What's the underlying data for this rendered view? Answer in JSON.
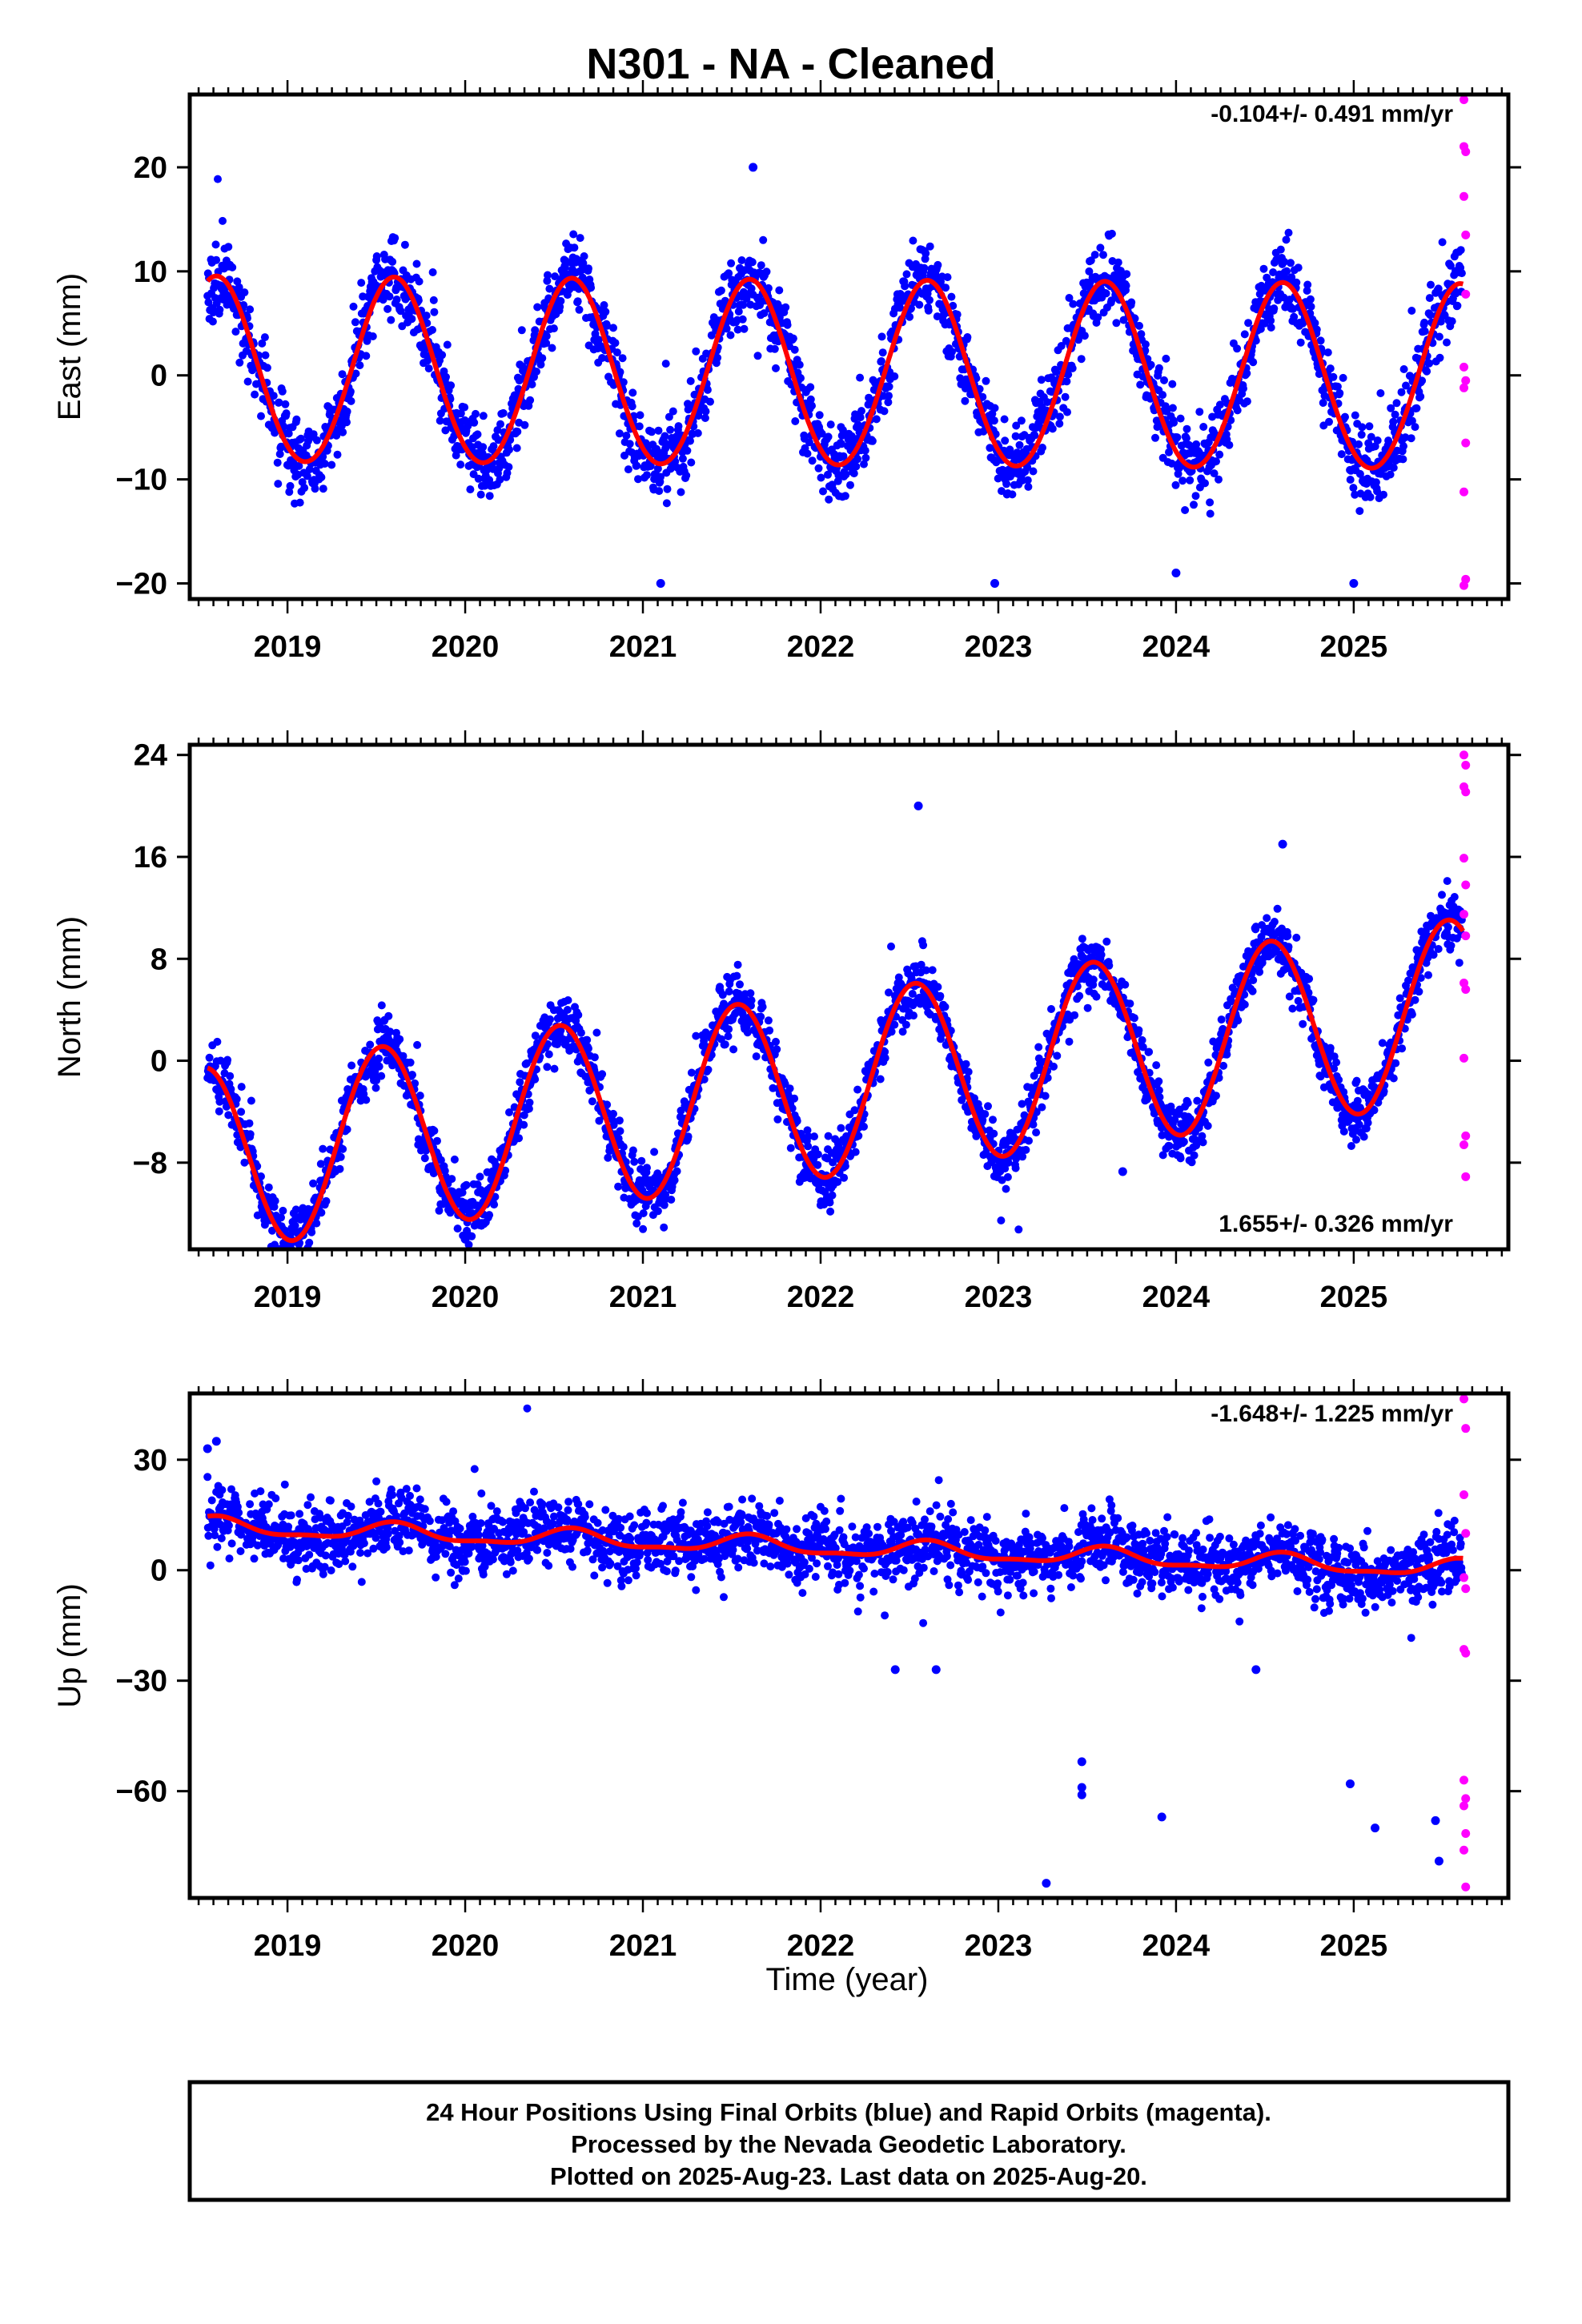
{
  "title": "N301  - NA - Cleaned",
  "colors": {
    "final": "#0000ff",
    "rapid": "#ff00ff",
    "model": "#ff0000",
    "frame": "#000000"
  },
  "xlabel": "Time (year)",
  "footer": [
    "24 Hour Positions Using Final Orbits (blue) and Rapid Orbits (magenta).",
    "Processed by the Nevada Geodetic Laboratory.",
    "Plotted on 2025-Aug-23. Last data on 2025-Aug-20."
  ],
  "chart_data": [
    {
      "type": "scatter",
      "component": "east",
      "ylabel": "East (mm)",
      "rate": "-0.104+/- 0.491 mm/yr",
      "xlim": [
        2018.45,
        2025.87
      ],
      "ylim": [
        -21.5,
        27
      ],
      "yticks": [
        -20,
        -10,
        0,
        10,
        20
      ],
      "xticks": [
        2019,
        2020,
        2021,
        2022,
        2023,
        2024,
        2025
      ],
      "model": {
        "offset": 0.0,
        "rate": -0.104,
        "amp": 8.9,
        "peak": 0.6,
        "amp2": 0.3,
        "peak2": 0.6
      },
      "noise": {
        "scatter": 2.1,
        "spread": 0.12,
        "seed": 11,
        "outliers": [
          [
            2021.1,
            -20
          ],
          [
            2021.62,
            20
          ],
          [
            2022.98,
            -20
          ],
          [
            2024.0,
            -19
          ],
          [
            2025.0,
            -20
          ]
        ]
      },
      "rapid": [
        [
          2025.62,
          26.5
        ],
        [
          2025.62,
          22
        ],
        [
          2025.63,
          21.5
        ],
        [
          2025.62,
          17.2
        ],
        [
          2025.63,
          13.5
        ],
        [
          2025.63,
          7.8
        ],
        [
          2025.62,
          0.8
        ],
        [
          2025.63,
          -0.5
        ],
        [
          2025.62,
          -1.2
        ],
        [
          2025.63,
          -6.5
        ],
        [
          2025.62,
          -11.2
        ],
        [
          2025.63,
          -19.6
        ],
        [
          2025.62,
          -20.2
        ]
      ]
    },
    {
      "type": "scatter",
      "component": "north",
      "ylabel": "North (mm)",
      "rate": "1.655+/- 0.326 mm/yr",
      "xlim": [
        2018.45,
        2025.87
      ],
      "ylim": [
        -14.8,
        24.8
      ],
      "yticks": [
        -8,
        0,
        8,
        16,
        24
      ],
      "xticks": [
        2019,
        2020,
        2021,
        2022,
        2023,
        2024,
        2025
      ],
      "model": {
        "offset": -2.0,
        "rate": 1.655,
        "amp": 7.2,
        "peak": 0.53,
        "amp2": 0.0,
        "peak2": 0.0
      },
      "noise": {
        "scatter": 1.3,
        "spread": 0.1,
        "seed": 23,
        "outliers": [
          [
            2020.0,
            -14
          ],
          [
            2022.55,
            20
          ],
          [
            2023.7,
            -8.7
          ],
          [
            2024.6,
            17
          ],
          [
            2021.05,
            -9.5
          ]
        ]
      },
      "rapid": [
        [
          2025.62,
          24
        ],
        [
          2025.63,
          23.2
        ],
        [
          2025.62,
          21.5
        ],
        [
          2025.63,
          21.1
        ],
        [
          2025.62,
          15.9
        ],
        [
          2025.63,
          13.8
        ],
        [
          2025.62,
          11.5
        ],
        [
          2025.63,
          9.8
        ],
        [
          2025.62,
          6.1
        ],
        [
          2025.63,
          5.6
        ],
        [
          2025.62,
          0.2
        ],
        [
          2025.63,
          -5.9
        ],
        [
          2025.62,
          -6.6
        ],
        [
          2025.63,
          -9.1
        ]
      ]
    },
    {
      "type": "scatter",
      "component": "up",
      "ylabel": "Up (mm)",
      "rate": "-1.648+/- 1.225 mm/yr",
      "xlim": [
        2018.45,
        2025.87
      ],
      "ylim": [
        -89,
        48
      ],
      "yticks": [
        -60,
        -30,
        0,
        30
      ],
      "xticks": [
        2019,
        2020,
        2021,
        2022,
        2023,
        2024,
        2025
      ],
      "model": {
        "offset": 6.2,
        "rate": -1.648,
        "amp": 2.2,
        "peak": 0.6,
        "amp2": 0.8,
        "peak2": 0.1
      },
      "noise": {
        "scatter": 5.0,
        "spread": 0.15,
        "seed": 37,
        "outliers": [
          [
            2018.55,
            33
          ],
          [
            2018.6,
            35
          ],
          [
            2023.27,
            -85
          ],
          [
            2023.47,
            -52
          ],
          [
            2023.47,
            -59
          ],
          [
            2023.47,
            -61
          ],
          [
            2023.92,
            -67
          ],
          [
            2024.98,
            -58
          ],
          [
            2025.12,
            -70
          ],
          [
            2025.46,
            -68
          ],
          [
            2025.48,
            -79
          ],
          [
            2022.42,
            -27
          ],
          [
            2022.65,
            -27
          ],
          [
            2024.45,
            -27
          ]
        ]
      },
      "rapid": [
        [
          2025.62,
          46.5
        ],
        [
          2025.63,
          38.5
        ],
        [
          2025.62,
          20.5
        ],
        [
          2025.63,
          10
        ],
        [
          2025.62,
          -2
        ],
        [
          2025.63,
          -5
        ],
        [
          2025.62,
          -21.5
        ],
        [
          2025.63,
          -22.5
        ],
        [
          2025.62,
          -57
        ],
        [
          2025.63,
          -62
        ],
        [
          2025.62,
          -64
        ],
        [
          2025.63,
          -71.5
        ],
        [
          2025.62,
          -76
        ],
        [
          2025.63,
          -86
        ]
      ]
    }
  ]
}
